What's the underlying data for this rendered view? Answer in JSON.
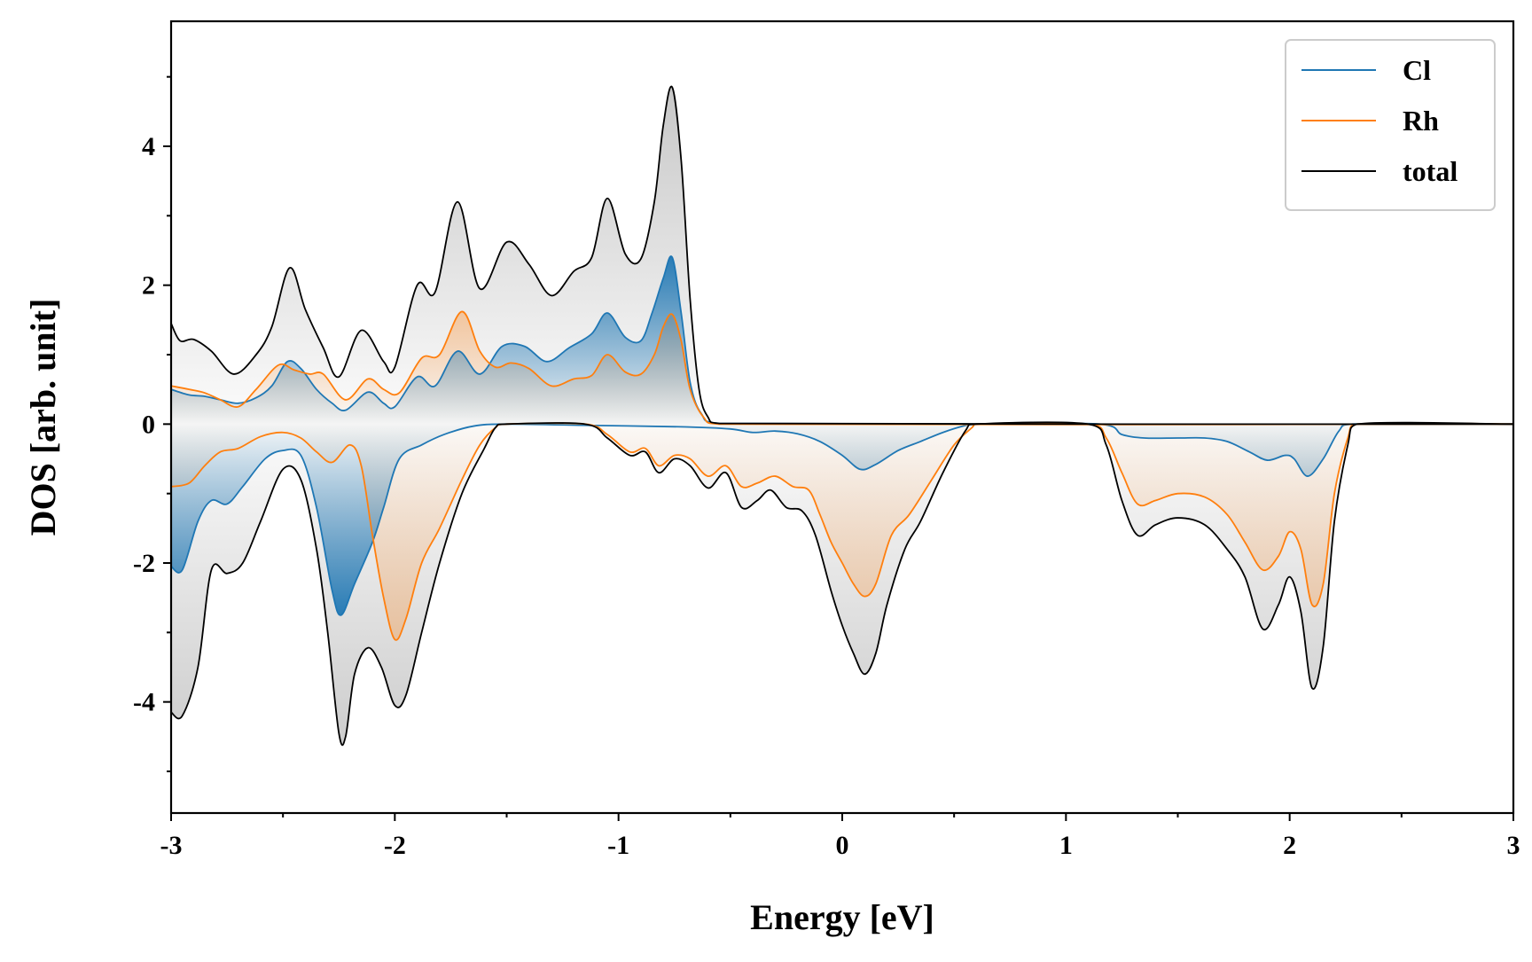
{
  "chart_data": {
    "type": "area",
    "title": "",
    "xlabel": "Energy [eV]",
    "ylabel": "DOS [arb. unit]",
    "xlim": [
      -3,
      3
    ],
    "ylim": [
      -5.6,
      5.8
    ],
    "xticks": [
      -3,
      -2,
      -1,
      0,
      1,
      2,
      3
    ],
    "yticks": [
      -4,
      -2,
      0,
      2,
      4
    ],
    "xtick_labels": [
      "-3",
      "-2",
      "-1",
      "0",
      "1",
      "2",
      "3"
    ],
    "ytick_labels": [
      "-4",
      "-2",
      "0",
      "2",
      "4"
    ],
    "x_minor_step": 0.5,
    "y_minor_step": 1,
    "grid": false,
    "legend_position": "top-right",
    "legend": [
      "Cl",
      "Rh",
      "total"
    ],
    "series": [
      {
        "name": "Cl",
        "color": "#1f77b4",
        "fill": "blue-gradient",
        "up": [
          [
            -3.0,
            0.5
          ],
          [
            -2.92,
            0.42
          ],
          [
            -2.85,
            0.4
          ],
          [
            -2.78,
            0.35
          ],
          [
            -2.7,
            0.3
          ],
          [
            -2.62,
            0.38
          ],
          [
            -2.55,
            0.55
          ],
          [
            -2.48,
            0.9
          ],
          [
            -2.42,
            0.8
          ],
          [
            -2.35,
            0.5
          ],
          [
            -2.28,
            0.3
          ],
          [
            -2.22,
            0.2
          ],
          [
            -2.12,
            0.46
          ],
          [
            -2.05,
            0.3
          ],
          [
            -2.0,
            0.25
          ],
          [
            -1.9,
            0.68
          ],
          [
            -1.82,
            0.55
          ],
          [
            -1.72,
            1.05
          ],
          [
            -1.62,
            0.72
          ],
          [
            -1.52,
            1.12
          ],
          [
            -1.42,
            1.12
          ],
          [
            -1.32,
            0.9
          ],
          [
            -1.22,
            1.1
          ],
          [
            -1.12,
            1.3
          ],
          [
            -1.05,
            1.6
          ],
          [
            -0.97,
            1.25
          ],
          [
            -0.9,
            1.2
          ],
          [
            -0.85,
            1.6
          ],
          [
            -0.8,
            2.1
          ],
          [
            -0.76,
            2.4
          ],
          [
            -0.72,
            1.6
          ],
          [
            -0.68,
            0.6
          ],
          [
            -0.63,
            0.15
          ],
          [
            -0.55,
            0.01
          ],
          [
            3.0,
            0.0
          ]
        ],
        "down": [
          [
            -3.0,
            -2.05
          ],
          [
            -2.95,
            -2.1
          ],
          [
            -2.88,
            -1.4
          ],
          [
            -2.82,
            -1.1
          ],
          [
            -2.75,
            -1.15
          ],
          [
            -2.68,
            -0.9
          ],
          [
            -2.58,
            -0.5
          ],
          [
            -2.5,
            -0.38
          ],
          [
            -2.42,
            -0.45
          ],
          [
            -2.35,
            -1.2
          ],
          [
            -2.28,
            -2.4
          ],
          [
            -2.24,
            -2.75
          ],
          [
            -2.18,
            -2.3
          ],
          [
            -2.1,
            -1.7
          ],
          [
            -2.05,
            -1.2
          ],
          [
            -1.98,
            -0.5
          ],
          [
            -1.88,
            -0.3
          ],
          [
            -1.78,
            -0.15
          ],
          [
            -1.65,
            -0.03
          ],
          [
            -1.5,
            0.0
          ],
          [
            -1.1,
            -0.02
          ],
          [
            -0.7,
            -0.04
          ],
          [
            -0.5,
            -0.07
          ],
          [
            -0.4,
            -0.12
          ],
          [
            -0.3,
            -0.1
          ],
          [
            -0.2,
            -0.14
          ],
          [
            -0.1,
            -0.25
          ],
          [
            0.0,
            -0.45
          ],
          [
            0.08,
            -0.65
          ],
          [
            0.15,
            -0.58
          ],
          [
            0.25,
            -0.38
          ],
          [
            0.35,
            -0.25
          ],
          [
            0.45,
            -0.12
          ],
          [
            0.55,
            -0.02
          ],
          [
            0.6,
            0.0
          ],
          [
            1.15,
            0.0
          ],
          [
            1.25,
            -0.15
          ],
          [
            1.35,
            -0.2
          ],
          [
            1.5,
            -0.2
          ],
          [
            1.62,
            -0.2
          ],
          [
            1.72,
            -0.25
          ],
          [
            1.82,
            -0.4
          ],
          [
            1.9,
            -0.52
          ],
          [
            1.98,
            -0.45
          ],
          [
            2.02,
            -0.5
          ],
          [
            2.08,
            -0.75
          ],
          [
            2.15,
            -0.5
          ],
          [
            2.22,
            -0.1
          ],
          [
            2.28,
            0.0
          ],
          [
            3.0,
            0.0
          ]
        ]
      },
      {
        "name": "Rh",
        "color": "#ff7f0e",
        "fill": "orange-gradient",
        "up": [
          [
            -3.0,
            0.55
          ],
          [
            -2.92,
            0.5
          ],
          [
            -2.85,
            0.45
          ],
          [
            -2.78,
            0.35
          ],
          [
            -2.7,
            0.25
          ],
          [
            -2.62,
            0.5
          ],
          [
            -2.52,
            0.85
          ],
          [
            -2.45,
            0.78
          ],
          [
            -2.38,
            0.72
          ],
          [
            -2.32,
            0.72
          ],
          [
            -2.22,
            0.35
          ],
          [
            -2.12,
            0.65
          ],
          [
            -2.05,
            0.5
          ],
          [
            -1.98,
            0.45
          ],
          [
            -1.88,
            0.95
          ],
          [
            -1.8,
            1.0
          ],
          [
            -1.7,
            1.62
          ],
          [
            -1.62,
            1.05
          ],
          [
            -1.55,
            0.82
          ],
          [
            -1.48,
            0.88
          ],
          [
            -1.4,
            0.8
          ],
          [
            -1.3,
            0.55
          ],
          [
            -1.2,
            0.65
          ],
          [
            -1.12,
            0.7
          ],
          [
            -1.05,
            1.0
          ],
          [
            -0.97,
            0.75
          ],
          [
            -0.9,
            0.72
          ],
          [
            -0.84,
            1.0
          ],
          [
            -0.8,
            1.4
          ],
          [
            -0.76,
            1.58
          ],
          [
            -0.72,
            1.2
          ],
          [
            -0.68,
            0.5
          ],
          [
            -0.62,
            0.1
          ],
          [
            -0.55,
            0.0
          ],
          [
            3.0,
            0.0
          ]
        ],
        "down": [
          [
            -3.0,
            -0.9
          ],
          [
            -2.92,
            -0.85
          ],
          [
            -2.85,
            -0.6
          ],
          [
            -2.78,
            -0.4
          ],
          [
            -2.7,
            -0.35
          ],
          [
            -2.6,
            -0.18
          ],
          [
            -2.5,
            -0.12
          ],
          [
            -2.42,
            -0.2
          ],
          [
            -2.35,
            -0.4
          ],
          [
            -2.28,
            -0.55
          ],
          [
            -2.2,
            -0.3
          ],
          [
            -2.15,
            -0.6
          ],
          [
            -2.1,
            -1.6
          ],
          [
            -2.05,
            -2.5
          ],
          [
            -2.0,
            -3.1
          ],
          [
            -1.95,
            -2.8
          ],
          [
            -1.88,
            -2.0
          ],
          [
            -1.8,
            -1.5
          ],
          [
            -1.7,
            -0.8
          ],
          [
            -1.62,
            -0.3
          ],
          [
            -1.55,
            -0.05
          ],
          [
            -1.5,
            0.0
          ],
          [
            -1.15,
            0.0
          ],
          [
            -1.05,
            -0.15
          ],
          [
            -0.95,
            -0.4
          ],
          [
            -0.88,
            -0.35
          ],
          [
            -0.82,
            -0.6
          ],
          [
            -0.75,
            -0.45
          ],
          [
            -0.68,
            -0.5
          ],
          [
            -0.6,
            -0.75
          ],
          [
            -0.52,
            -0.6
          ],
          [
            -0.45,
            -0.9
          ],
          [
            -0.38,
            -0.85
          ],
          [
            -0.3,
            -0.75
          ],
          [
            -0.22,
            -0.9
          ],
          [
            -0.15,
            -0.95
          ],
          [
            -0.1,
            -1.3
          ],
          [
            -0.05,
            -1.7
          ],
          [
            0.0,
            -2.0
          ],
          [
            0.05,
            -2.3
          ],
          [
            0.1,
            -2.48
          ],
          [
            0.15,
            -2.3
          ],
          [
            0.22,
            -1.6
          ],
          [
            0.3,
            -1.3
          ],
          [
            0.4,
            -0.8
          ],
          [
            0.5,
            -0.3
          ],
          [
            0.58,
            -0.05
          ],
          [
            0.6,
            0.0
          ],
          [
            1.1,
            0.0
          ],
          [
            1.18,
            -0.2
          ],
          [
            1.25,
            -0.7
          ],
          [
            1.32,
            -1.15
          ],
          [
            1.4,
            -1.1
          ],
          [
            1.5,
            -1.0
          ],
          [
            1.62,
            -1.05
          ],
          [
            1.72,
            -1.3
          ],
          [
            1.8,
            -1.7
          ],
          [
            1.88,
            -2.1
          ],
          [
            1.95,
            -1.9
          ],
          [
            2.0,
            -1.55
          ],
          [
            2.05,
            -1.8
          ],
          [
            2.1,
            -2.6
          ],
          [
            2.15,
            -2.3
          ],
          [
            2.2,
            -1.0
          ],
          [
            2.26,
            -0.2
          ],
          [
            2.3,
            0.0
          ],
          [
            3.0,
            0.0
          ]
        ]
      },
      {
        "name": "total",
        "color": "#000000",
        "fill": "gray-gradient",
        "up": [
          [
            -3.0,
            1.45
          ],
          [
            -2.96,
            1.2
          ],
          [
            -2.9,
            1.22
          ],
          [
            -2.82,
            1.05
          ],
          [
            -2.72,
            0.72
          ],
          [
            -2.62,
            1.0
          ],
          [
            -2.55,
            1.4
          ],
          [
            -2.47,
            2.25
          ],
          [
            -2.4,
            1.65
          ],
          [
            -2.32,
            1.1
          ],
          [
            -2.25,
            0.68
          ],
          [
            -2.15,
            1.35
          ],
          [
            -2.05,
            0.9
          ],
          [
            -2.0,
            0.82
          ],
          [
            -1.9,
            2.0
          ],
          [
            -1.82,
            1.9
          ],
          [
            -1.72,
            3.2
          ],
          [
            -1.62,
            1.95
          ],
          [
            -1.5,
            2.62
          ],
          [
            -1.4,
            2.3
          ],
          [
            -1.3,
            1.85
          ],
          [
            -1.2,
            2.2
          ],
          [
            -1.12,
            2.4
          ],
          [
            -1.05,
            3.25
          ],
          [
            -0.97,
            2.45
          ],
          [
            -0.9,
            2.38
          ],
          [
            -0.84,
            3.2
          ],
          [
            -0.8,
            4.3
          ],
          [
            -0.76,
            4.85
          ],
          [
            -0.72,
            3.8
          ],
          [
            -0.68,
            1.8
          ],
          [
            -0.64,
            0.5
          ],
          [
            -0.6,
            0.1
          ],
          [
            -0.55,
            0.01
          ],
          [
            3.0,
            0.0
          ]
        ],
        "down": [
          [
            -3.0,
            -4.15
          ],
          [
            -2.95,
            -4.2
          ],
          [
            -2.88,
            -3.5
          ],
          [
            -2.82,
            -2.1
          ],
          [
            -2.75,
            -2.15
          ],
          [
            -2.68,
            -2.0
          ],
          [
            -2.6,
            -1.4
          ],
          [
            -2.5,
            -0.65
          ],
          [
            -2.42,
            -0.8
          ],
          [
            -2.35,
            -1.8
          ],
          [
            -2.3,
            -3.0
          ],
          [
            -2.25,
            -4.45
          ],
          [
            -2.22,
            -4.5
          ],
          [
            -2.18,
            -3.6
          ],
          [
            -2.12,
            -3.22
          ],
          [
            -2.06,
            -3.5
          ],
          [
            -2.0,
            -4.05
          ],
          [
            -1.95,
            -3.9
          ],
          [
            -1.88,
            -3.0
          ],
          [
            -1.8,
            -2.0
          ],
          [
            -1.7,
            -1.0
          ],
          [
            -1.6,
            -0.35
          ],
          [
            -1.55,
            -0.05
          ],
          [
            -1.5,
            0.0
          ],
          [
            -1.15,
            0.0
          ],
          [
            -1.05,
            -0.2
          ],
          [
            -0.95,
            -0.45
          ],
          [
            -0.88,
            -0.4
          ],
          [
            -0.82,
            -0.7
          ],
          [
            -0.75,
            -0.5
          ],
          [
            -0.68,
            -0.6
          ],
          [
            -0.6,
            -0.92
          ],
          [
            -0.52,
            -0.7
          ],
          [
            -0.45,
            -1.2
          ],
          [
            -0.38,
            -1.1
          ],
          [
            -0.32,
            -0.95
          ],
          [
            -0.25,
            -1.2
          ],
          [
            -0.18,
            -1.25
          ],
          [
            -0.12,
            -1.6
          ],
          [
            -0.05,
            -2.4
          ],
          [
            0.0,
            -2.9
          ],
          [
            0.05,
            -3.3
          ],
          [
            0.1,
            -3.6
          ],
          [
            0.15,
            -3.3
          ],
          [
            0.2,
            -2.6
          ],
          [
            0.28,
            -1.8
          ],
          [
            0.35,
            -1.4
          ],
          [
            0.45,
            -0.7
          ],
          [
            0.55,
            -0.1
          ],
          [
            0.6,
            0.0
          ],
          [
            1.1,
            0.0
          ],
          [
            1.18,
            -0.3
          ],
          [
            1.25,
            -1.1
          ],
          [
            1.32,
            -1.6
          ],
          [
            1.4,
            -1.45
          ],
          [
            1.5,
            -1.35
          ],
          [
            1.62,
            -1.45
          ],
          [
            1.72,
            -1.8
          ],
          [
            1.8,
            -2.2
          ],
          [
            1.88,
            -2.95
          ],
          [
            1.95,
            -2.6
          ],
          [
            2.0,
            -2.2
          ],
          [
            2.05,
            -2.7
          ],
          [
            2.1,
            -3.8
          ],
          [
            2.15,
            -3.2
          ],
          [
            2.2,
            -1.4
          ],
          [
            2.26,
            -0.3
          ],
          [
            2.3,
            0.0
          ],
          [
            3.0,
            0.0
          ]
        ]
      }
    ]
  }
}
